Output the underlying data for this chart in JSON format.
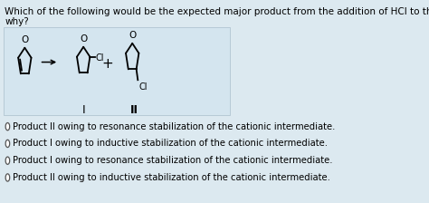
{
  "title_line1": "Which of the following would be the expected major product from the addition of HCl to the alkene below, and",
  "title_line2": "why?",
  "bg_color": "#dce9f0",
  "text_color": "#000000",
  "options": [
    "Product II owing to resonance stabilization of the cationic intermediate.",
    "Product I owing to inductive stabilization of the cationic intermediate.",
    "Product I owing to resonance stabilization of the cationic intermediate.",
    "Product II owing to inductive stabilization of the cationic intermediate."
  ],
  "label_I": "I",
  "label_II": "II",
  "plus_sign": "+",
  "panel_box_color": "#c8dce8",
  "lw": 1.3,
  "font_size_text": 7.5,
  "font_size_label": 9.0,
  "font_size_opt": 7.2
}
